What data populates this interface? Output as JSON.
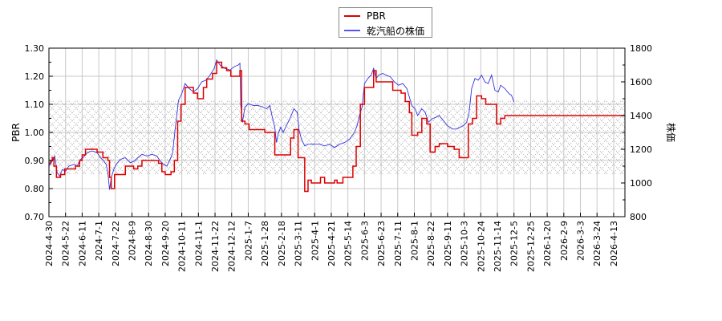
{
  "legend": {
    "items": [
      {
        "label": "PBR",
        "color": "#dd0000"
      },
      {
        "label": "乾汽船の株価",
        "color": "#3333dd"
      }
    ]
  },
  "chart_data": {
    "type": "line",
    "title": "",
    "xlabel": "",
    "ylabel_left": "PBR",
    "ylabel_right": "株価",
    "ylim_left": [
      0.7,
      1.3
    ],
    "ylim_right": [
      800,
      1800
    ],
    "yticks_left": [
      "0.70",
      "0.80",
      "0.90",
      "1.00",
      "1.10",
      "1.20",
      "1.30"
    ],
    "yticks_right": [
      "800",
      "1000",
      "1200",
      "1400",
      "1600",
      "1800"
    ],
    "grid": true,
    "legend_position": "top-center",
    "shaded_band_pbr": [
      0.85,
      1.115
    ],
    "x_ticks": [
      "2024-4-30",
      "2024-5-22",
      "2024-6-11",
      "2024-7-1",
      "2024-7-22",
      "2024-8-9",
      "2024-8-30",
      "2024-9-20",
      "2024-10-11",
      "2024-11-1",
      "2024-11-22",
      "2024-12-12",
      "2025-1-7",
      "2025-1-28",
      "2025-2-18",
      "2025-3-11",
      "2025-4-1",
      "2025-4-21",
      "2025-5-14",
      "2025-6-3",
      "2025-6-23",
      "2025-7-11",
      "2025-8-1",
      "2025-8-22",
      "2025-9-11",
      "2025-10-3",
      "2025-10-24",
      "2025-11-14",
      "2025-12-5",
      "2025-12-25",
      "2026-1-20",
      "2026-2-9",
      "2026-3-3",
      "2026-3-24",
      "2026-4-13"
    ],
    "series": [
      {
        "name": "PBR",
        "axis": "left",
        "color": "#dd0000",
        "style": "step",
        "points": [
          [
            0,
            0.89
          ],
          [
            0.1,
            0.9
          ],
          [
            0.2,
            0.91
          ],
          [
            0.3,
            0.88
          ],
          [
            0.45,
            0.84
          ],
          [
            0.7,
            0.85
          ],
          [
            0.95,
            0.87
          ],
          [
            1.3,
            0.87
          ],
          [
            1.6,
            0.88
          ],
          [
            1.85,
            0.9
          ],
          [
            2.0,
            0.92
          ],
          [
            2.2,
            0.94
          ],
          [
            2.9,
            0.93
          ],
          [
            3.25,
            0.91
          ],
          [
            3.55,
            0.9
          ],
          [
            3.65,
            0.84
          ],
          [
            3.75,
            0.8
          ],
          [
            3.95,
            0.85
          ],
          [
            4.3,
            0.85
          ],
          [
            4.6,
            0.88
          ],
          [
            5.1,
            0.87
          ],
          [
            5.35,
            0.88
          ],
          [
            5.6,
            0.9
          ],
          [
            6.3,
            0.9
          ],
          [
            6.6,
            0.89
          ],
          [
            6.8,
            0.86
          ],
          [
            7.0,
            0.85
          ],
          [
            7.35,
            0.86
          ],
          [
            7.55,
            0.9
          ],
          [
            7.75,
            1.04
          ],
          [
            7.95,
            1.1
          ],
          [
            8.2,
            1.16
          ],
          [
            8.7,
            1.14
          ],
          [
            8.95,
            1.12
          ],
          [
            9.3,
            1.16
          ],
          [
            9.5,
            1.19
          ],
          [
            9.85,
            1.21
          ],
          [
            10.1,
            1.25
          ],
          [
            10.4,
            1.23
          ],
          [
            10.7,
            1.22
          ],
          [
            10.95,
            1.2
          ],
          [
            11.3,
            1.2
          ],
          [
            11.5,
            1.22
          ],
          [
            11.6,
            1.04
          ],
          [
            11.8,
            1.03
          ],
          [
            12.05,
            1.01
          ],
          [
            12.4,
            1.01
          ],
          [
            12.8,
            1.01
          ],
          [
            13.0,
            1.0
          ],
          [
            13.35,
            1.0
          ],
          [
            13.6,
            0.92
          ],
          [
            13.85,
            0.92
          ],
          [
            14.2,
            0.92
          ],
          [
            14.55,
            0.98
          ],
          [
            14.75,
            1.01
          ],
          [
            14.95,
            1.01
          ],
          [
            15.0,
            0.91
          ],
          [
            15.3,
            0.91
          ],
          [
            15.4,
            0.79
          ],
          [
            15.6,
            0.83
          ],
          [
            15.8,
            0.82
          ],
          [
            16.2,
            0.82
          ],
          [
            16.35,
            0.84
          ],
          [
            16.6,
            0.82
          ],
          [
            17.2,
            0.83
          ],
          [
            17.35,
            0.82
          ],
          [
            17.7,
            0.84
          ],
          [
            18.0,
            0.84
          ],
          [
            18.3,
            0.88
          ],
          [
            18.5,
            0.95
          ],
          [
            18.75,
            1.1
          ],
          [
            19.0,
            1.16
          ],
          [
            19.55,
            1.22
          ],
          [
            19.7,
            1.18
          ],
          [
            19.9,
            1.18
          ],
          [
            20.3,
            1.18
          ],
          [
            20.7,
            1.15
          ],
          [
            21.2,
            1.14
          ],
          [
            21.45,
            1.11
          ],
          [
            21.7,
            1.07
          ],
          [
            21.85,
            0.99
          ],
          [
            22.2,
            1.0
          ],
          [
            22.45,
            1.05
          ],
          [
            22.75,
            1.03
          ],
          [
            22.95,
            0.93
          ],
          [
            23.25,
            0.95
          ],
          [
            23.5,
            0.96
          ],
          [
            24.0,
            0.95
          ],
          [
            24.4,
            0.94
          ],
          [
            24.7,
            0.91
          ],
          [
            25.1,
            0.91
          ],
          [
            25.25,
            1.03
          ],
          [
            25.5,
            1.05
          ],
          [
            25.75,
            1.13
          ],
          [
            26.05,
            1.12
          ],
          [
            26.3,
            1.1
          ],
          [
            26.75,
            1.1
          ],
          [
            26.95,
            1.03
          ],
          [
            27.2,
            1.05
          ],
          [
            27.45,
            1.06
          ],
          [
            28.0,
            1.06
          ]
        ]
      },
      {
        "name": "乾汽船の株価",
        "axis": "right",
        "color": "#3333dd",
        "style": "line",
        "points": [
          [
            0,
            1100
          ],
          [
            0.2,
            1130
          ],
          [
            0.35,
            1160
          ],
          [
            0.5,
            1060
          ],
          [
            0.65,
            1040
          ],
          [
            0.8,
            1080
          ],
          [
            1.0,
            1070
          ],
          [
            1.2,
            1100
          ],
          [
            1.5,
            1110
          ],
          [
            1.7,
            1100
          ],
          [
            1.9,
            1140
          ],
          [
            2.05,
            1150
          ],
          [
            2.3,
            1180
          ],
          [
            2.6,
            1190
          ],
          [
            2.9,
            1180
          ],
          [
            3.1,
            1150
          ],
          [
            3.3,
            1130
          ],
          [
            3.45,
            1110
          ],
          [
            3.55,
            1060
          ],
          [
            3.65,
            960
          ],
          [
            3.75,
            1030
          ],
          [
            3.9,
            1080
          ],
          [
            4.05,
            1110
          ],
          [
            4.3,
            1140
          ],
          [
            4.6,
            1150
          ],
          [
            4.9,
            1120
          ],
          [
            5.15,
            1130
          ],
          [
            5.35,
            1150
          ],
          [
            5.6,
            1170
          ],
          [
            5.9,
            1160
          ],
          [
            6.2,
            1170
          ],
          [
            6.5,
            1160
          ],
          [
            6.7,
            1130
          ],
          [
            6.9,
            1110
          ],
          [
            7.1,
            1100
          ],
          [
            7.3,
            1140
          ],
          [
            7.45,
            1180
          ],
          [
            7.6,
            1320
          ],
          [
            7.8,
            1490
          ],
          [
            8.0,
            1530
          ],
          [
            8.2,
            1590
          ],
          [
            8.45,
            1560
          ],
          [
            8.7,
            1540
          ],
          [
            8.95,
            1560
          ],
          [
            9.2,
            1600
          ],
          [
            9.45,
            1610
          ],
          [
            9.7,
            1640
          ],
          [
            9.95,
            1680
          ],
          [
            10.1,
            1730
          ],
          [
            10.3,
            1700
          ],
          [
            10.6,
            1680
          ],
          [
            10.9,
            1670
          ],
          [
            11.15,
            1690
          ],
          [
            11.4,
            1700
          ],
          [
            11.5,
            1710
          ],
          [
            11.55,
            1460
          ],
          [
            11.65,
            1360
          ],
          [
            11.8,
            1450
          ],
          [
            12.0,
            1470
          ],
          [
            12.3,
            1460
          ],
          [
            12.6,
            1460
          ],
          [
            12.9,
            1450
          ],
          [
            13.1,
            1440
          ],
          [
            13.3,
            1460
          ],
          [
            13.45,
            1390
          ],
          [
            13.6,
            1330
          ],
          [
            13.7,
            1240
          ],
          [
            13.8,
            1290
          ],
          [
            13.95,
            1330
          ],
          [
            14.1,
            1300
          ],
          [
            14.3,
            1340
          ],
          [
            14.5,
            1380
          ],
          [
            14.75,
            1440
          ],
          [
            14.95,
            1420
          ],
          [
            15.05,
            1320
          ],
          [
            15.2,
            1260
          ],
          [
            15.4,
            1220
          ],
          [
            15.6,
            1230
          ],
          [
            15.9,
            1230
          ],
          [
            16.3,
            1230
          ],
          [
            16.6,
            1220
          ],
          [
            16.9,
            1230
          ],
          [
            17.2,
            1210
          ],
          [
            17.5,
            1230
          ],
          [
            17.8,
            1240
          ],
          [
            18.1,
            1260
          ],
          [
            18.4,
            1300
          ],
          [
            18.55,
            1340
          ],
          [
            18.7,
            1400
          ],
          [
            18.85,
            1450
          ],
          [
            19.0,
            1590
          ],
          [
            19.2,
            1620
          ],
          [
            19.4,
            1640
          ],
          [
            19.55,
            1680
          ],
          [
            19.7,
            1620
          ],
          [
            19.85,
            1640
          ],
          [
            20.1,
            1650
          ],
          [
            20.3,
            1640
          ],
          [
            20.55,
            1630
          ],
          [
            20.8,
            1600
          ],
          [
            21.05,
            1580
          ],
          [
            21.3,
            1590
          ],
          [
            21.55,
            1560
          ],
          [
            21.7,
            1510
          ],
          [
            21.85,
            1460
          ],
          [
            22.05,
            1440
          ],
          [
            22.2,
            1400
          ],
          [
            22.45,
            1440
          ],
          [
            22.65,
            1420
          ],
          [
            22.85,
            1360
          ],
          [
            23.05,
            1380
          ],
          [
            23.3,
            1390
          ],
          [
            23.5,
            1400
          ],
          [
            23.75,
            1370
          ],
          [
            24.0,
            1340
          ],
          [
            24.3,
            1320
          ],
          [
            24.55,
            1320
          ],
          [
            24.75,
            1330
          ],
          [
            24.95,
            1340
          ],
          [
            25.15,
            1360
          ],
          [
            25.3,
            1420
          ],
          [
            25.45,
            1560
          ],
          [
            25.65,
            1620
          ],
          [
            25.85,
            1610
          ],
          [
            26.05,
            1640
          ],
          [
            26.25,
            1600
          ],
          [
            26.45,
            1590
          ],
          [
            26.65,
            1640
          ],
          [
            26.85,
            1550
          ],
          [
            27.05,
            1540
          ],
          [
            27.2,
            1580
          ],
          [
            27.45,
            1560
          ],
          [
            27.7,
            1530
          ],
          [
            27.85,
            1520
          ],
          [
            28.0,
            1480
          ]
        ]
      }
    ]
  }
}
